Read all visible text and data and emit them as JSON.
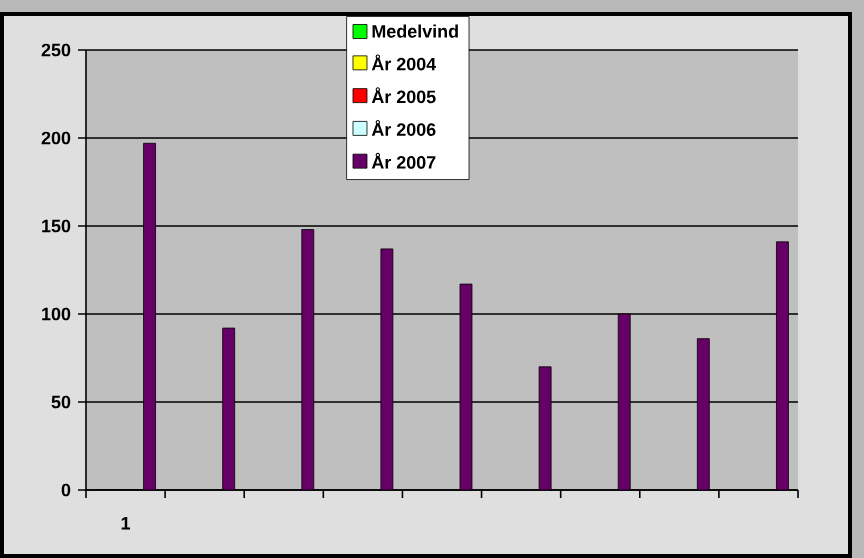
{
  "chart_data": {
    "type": "bar",
    "categories": [
      "1",
      null,
      null,
      null,
      null,
      null,
      null,
      null,
      null
    ],
    "series": [
      {
        "name": "Medelvind",
        "color": "#00ff00",
        "values": [
          0,
          null,
          null,
          null,
          null,
          null,
          null,
          null,
          null
        ]
      },
      {
        "name": "År 2004",
        "color": "#ffff00",
        "values": [
          0,
          null,
          null,
          null,
          null,
          null,
          null,
          null,
          null
        ]
      },
      {
        "name": "År 2005",
        "color": "#ff0000",
        "values": [
          0,
          null,
          null,
          null,
          null,
          null,
          null,
          null,
          null
        ]
      },
      {
        "name": "År 2006",
        "color": "#ccffff",
        "values": [
          0,
          null,
          null,
          null,
          null,
          null,
          null,
          null,
          null
        ]
      },
      {
        "name": "År 2007",
        "color": "#660066",
        "values": [
          197,
          92,
          148,
          137,
          117,
          70,
          100,
          86,
          141
        ]
      }
    ],
    "ylim": [
      0,
      250
    ],
    "yticks": [
      0,
      50,
      100,
      150,
      200,
      250
    ],
    "grid": "y",
    "legend": "top"
  }
}
